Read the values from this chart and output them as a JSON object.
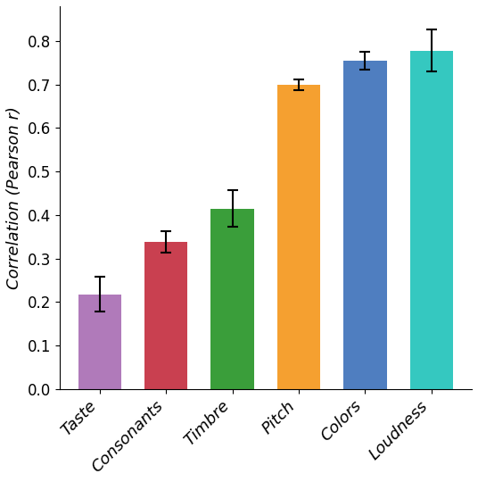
{
  "categories": [
    "Taste",
    "Consonants",
    "Timbre",
    "Pitch",
    "Colors",
    "Loudness"
  ],
  "values": [
    0.218,
    0.338,
    0.415,
    0.7,
    0.755,
    0.778
  ],
  "errors": [
    0.04,
    0.025,
    0.042,
    0.012,
    0.02,
    0.048
  ],
  "bar_colors": [
    "#b07aba",
    "#c94050",
    "#3a9e3a",
    "#f5a030",
    "#4f7ec0",
    "#35c8c0"
  ],
  "ylabel": "Correlation (Pearson r)",
  "ylim": [
    0,
    0.88
  ],
  "yticks": [
    0.0,
    0.1,
    0.2,
    0.3,
    0.4,
    0.5,
    0.6,
    0.7,
    0.8
  ],
  "figsize": [
    5.36,
    5.4
  ],
  "dpi": 100
}
